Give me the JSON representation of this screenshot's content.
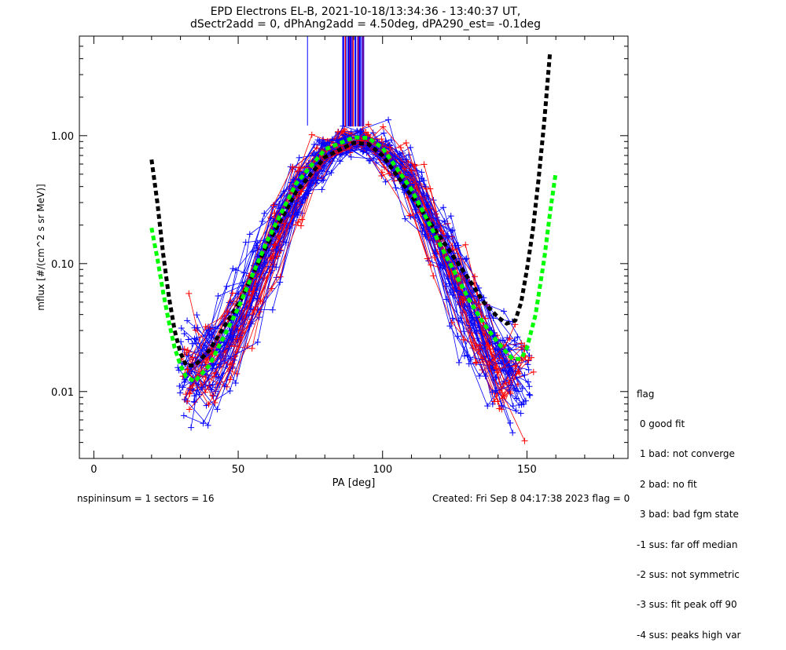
{
  "title_line1": "EPD Electrons EL-B, 2021-10-18/13:34:36 - 13:40:37 UT,",
  "title_line2": "dSectr2add = 0, dPhAng2add = 4.50deg, dPA290_est=  -0.1deg",
  "legend": {
    "title": "flag",
    "items": [
      " 0 good fit",
      " 1 bad: not converge",
      " 2 bad: no fit",
      " 3 bad: bad fgm state",
      "-1 sus: far off median",
      "-2 sus: not symmetric",
      "-3 sus: fit peak off 90",
      "-4 sus: peaks high var"
    ]
  },
  "footer": {
    "left": "nspininsum =  1  sectors = 16",
    "right": "Created: Fri Sep  8 04:17:38 2023   flag = 0"
  },
  "colors": {
    "red": "#ff0000",
    "blue": "#0000ff",
    "black_fit": "#000000",
    "green_fit": "#00ff00"
  },
  "chart_data": {
    "type": "line",
    "xlabel": "PA [deg]",
    "ylabel": "mflux [#/(cm^2 s sr MeV)]",
    "xlim": [
      -5,
      185
    ],
    "ylim": [
      0.003,
      6.0
    ],
    "yscale": "log",
    "xticks": [
      0,
      50,
      100,
      150
    ],
    "yticks": [
      0.01,
      0.1,
      1.0
    ],
    "ytick_labels": [
      "0.01",
      "0.10",
      "1.00"
    ],
    "grid": false,
    "series": [
      {
        "style": "dashed-thick",
        "color": "black",
        "x": [
          20,
          22,
          24,
          26,
          28,
          30,
          32,
          35,
          40,
          50,
          60,
          70,
          80,
          90,
          95,
          100,
          110,
          120,
          130,
          135,
          140,
          143,
          146,
          148,
          150,
          152,
          154,
          156,
          158
        ],
        "y": [
          0.65,
          0.3,
          0.12,
          0.055,
          0.03,
          0.02,
          0.016,
          0.016,
          0.021,
          0.048,
          0.14,
          0.36,
          0.68,
          0.88,
          0.86,
          0.7,
          0.34,
          0.16,
          0.075,
          0.05,
          0.038,
          0.034,
          0.036,
          0.05,
          0.09,
          0.18,
          0.45,
          1.3,
          4.5
        ]
      },
      {
        "style": "dashed-thick",
        "color": "green",
        "x": [
          20,
          22,
          24,
          26,
          28,
          30,
          32,
          35,
          40,
          50,
          60,
          70,
          80,
          90,
          95,
          100,
          110,
          120,
          130,
          135,
          140,
          145,
          148,
          150,
          153,
          156,
          158,
          160
        ],
        "y": [
          0.19,
          0.11,
          0.06,
          0.035,
          0.022,
          0.016,
          0.013,
          0.012,
          0.016,
          0.045,
          0.15,
          0.42,
          0.78,
          0.97,
          0.96,
          0.8,
          0.38,
          0.14,
          0.052,
          0.034,
          0.024,
          0.018,
          0.018,
          0.022,
          0.04,
          0.11,
          0.25,
          0.52
        ]
      }
    ]
  }
}
